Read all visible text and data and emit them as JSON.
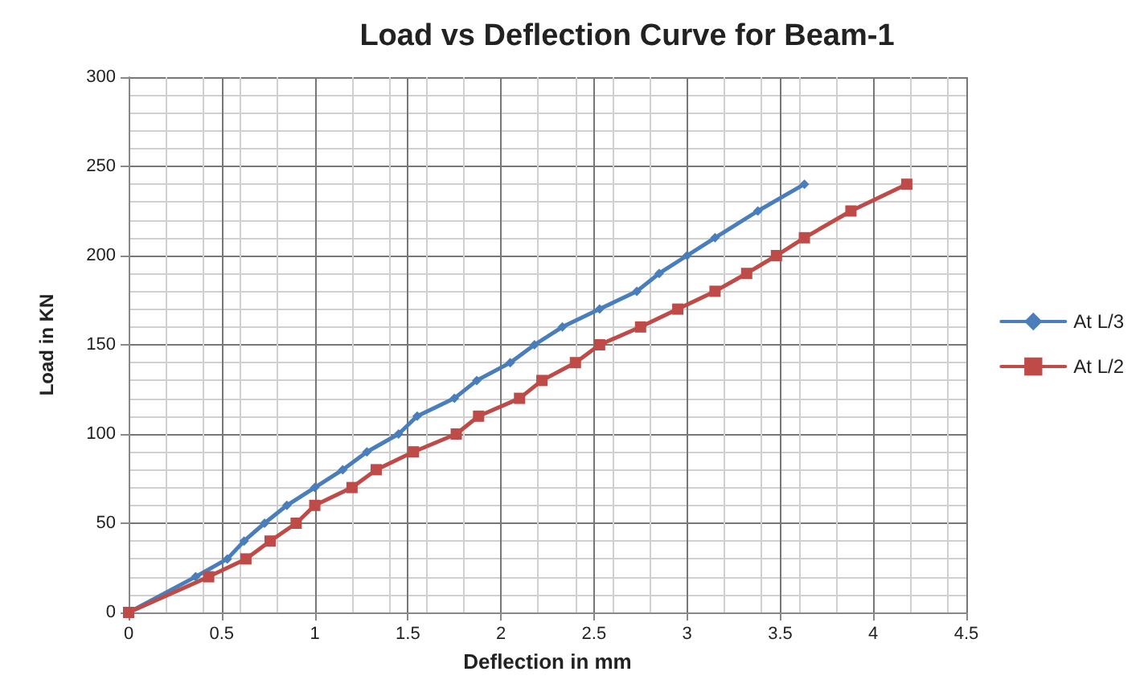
{
  "chart_data": {
    "type": "line",
    "title": "Load vs Deflection Curve for Beam-1",
    "xlabel": "Deflection in mm",
    "ylabel": "Load in KN",
    "xlim": [
      0,
      4.5
    ],
    "xticks": [
      0,
      0.5,
      1,
      1.5,
      2,
      2.5,
      3,
      3.5,
      4,
      4.5
    ],
    "ylim": [
      0,
      300
    ],
    "yticks": [
      0,
      50,
      100,
      150,
      200,
      250,
      300
    ],
    "grid": true,
    "legend": "right",
    "series": [
      {
        "name": "At L/3",
        "color": "#4a7ebb",
        "marker": "diamond",
        "x": [
          0,
          0.36,
          0.53,
          0.62,
          0.73,
          0.85,
          1.0,
          1.15,
          1.28,
          1.45,
          1.55,
          1.75,
          1.87,
          2.05,
          2.18,
          2.33,
          2.53,
          2.73,
          2.85,
          3.0,
          3.15,
          3.38,
          3.63
        ],
        "values": [
          0,
          20,
          30,
          40,
          50,
          60,
          70,
          80,
          90,
          100,
          110,
          120,
          130,
          140,
          150,
          160,
          170,
          180,
          190,
          200,
          210,
          225,
          240
        ]
      },
      {
        "name": "At L/2",
        "color": "#be4b48",
        "marker": "square",
        "x": [
          0,
          0.43,
          0.63,
          0.76,
          0.9,
          1.0,
          1.2,
          1.33,
          1.53,
          1.76,
          1.88,
          2.1,
          2.22,
          2.4,
          2.53,
          2.75,
          2.95,
          3.15,
          3.32,
          3.48,
          3.63,
          3.88,
          4.18
        ],
        "values": [
          0,
          20,
          30,
          40,
          50,
          60,
          70,
          80,
          90,
          100,
          110,
          120,
          130,
          140,
          150,
          160,
          170,
          180,
          190,
          200,
          210,
          225,
          240
        ]
      }
    ]
  }
}
